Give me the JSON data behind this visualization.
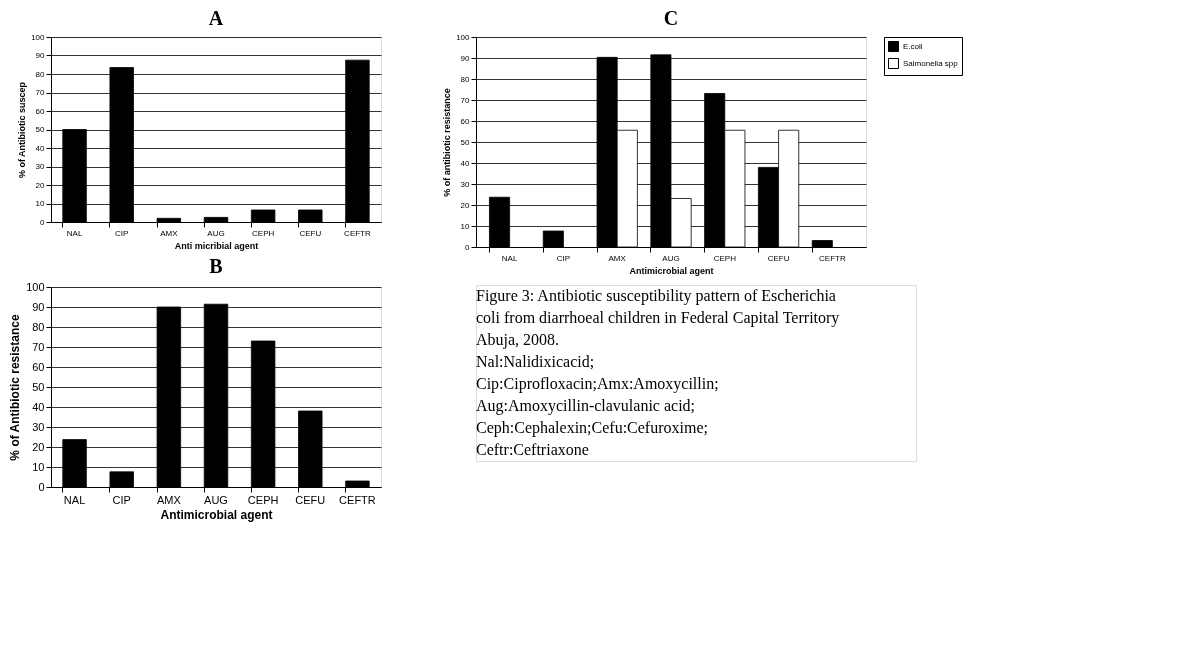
{
  "chart_data": [
    {
      "type": "bar",
      "title": "A",
      "categories": [
        "NAL",
        "CIP",
        "AMX",
        "AUG",
        "CEPH",
        "CEFU",
        "CEFTR"
      ],
      "xlabel": "Anti micribial agent",
      "ylabel": "% of Antibiotic suscep",
      "series": [
        {
          "color": "#000000",
          "values": [
            50,
            83.5,
            2,
            2.5,
            6.5,
            6.5,
            87.5
          ]
        }
      ],
      "ylim": [
        0,
        100
      ],
      "yticks": [
        0,
        10,
        20,
        30,
        40,
        50,
        60,
        70,
        80,
        90,
        100
      ],
      "grid": "y",
      "legend": false
    },
    {
      "type": "bar",
      "title": "B",
      "categories": [
        "NAL",
        "CIP",
        "AMX",
        "AUG",
        "CEPH",
        "CEFU",
        "CEFTR"
      ],
      "xlabel": "Antimicrobial agent",
      "ylabel": "% of Antibiotic resistance",
      "series": [
        {
          "color": "#000000",
          "values": [
            23.7,
            7.6,
            90,
            91.4,
            73,
            38,
            3
          ]
        }
      ],
      "ylim": [
        0,
        100
      ],
      "yticks": [
        0,
        10,
        20,
        30,
        40,
        50,
        60,
        70,
        80,
        90,
        100
      ],
      "grid": "y",
      "legend": false
    },
    {
      "type": "bar",
      "title": "C",
      "categories": [
        "NAL",
        "CIP",
        "AMX",
        "AUG",
        "CEPH",
        "CEFU",
        "CEFTR"
      ],
      "xlabel": "Antimicrobial agent",
      "ylabel": "% of antibiotic resistance",
      "series": [
        {
          "name": "E.coli",
          "color": "#000000",
          "values": [
            23.7,
            7.6,
            90.3,
            91.5,
            73.1,
            37.9,
            3.1
          ]
        },
        {
          "name": "Salmonella spp",
          "color": "#ffffff",
          "values": [
            null,
            null,
            55.6,
            23.1,
            55.6,
            55.6,
            null
          ]
        }
      ],
      "ylim": [
        0,
        100
      ],
      "yticks": [
        0,
        10,
        20,
        30,
        40,
        50,
        60,
        70,
        80,
        90,
        100
      ],
      "grid": "y",
      "legend": "right",
      "annotations": [
        "Figure 3: Antibiotic susceptibility pattern of Escherichia coli from diarrhoeal children in Federal Capital Territory Abuja, 2008.",
        "Nal:Nalidixicacid;",
        "Cip:Ciprofloxacin;Amx:Amoxycillin;",
        "Aug:Amoxycillin-clavulanic acid;",
        "Ceph:Cephalexin;Cefu:Cefuroxime;",
        "Ceftr:Ceftriaxone"
      ]
    }
  ]
}
